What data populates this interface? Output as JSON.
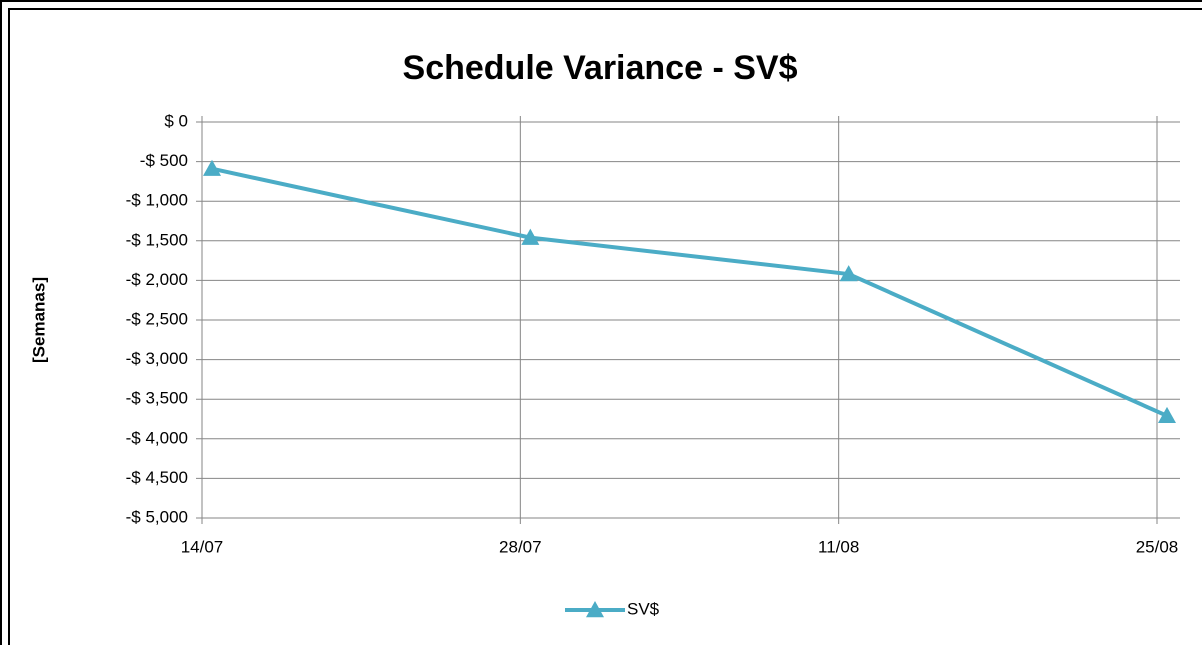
{
  "chart_data": {
    "type": "line",
    "title": "Schedule Variance - SV$",
    "y_label": "[Semanas]",
    "categories": [
      "14/07",
      "28/07",
      "11/08",
      "25/08"
    ],
    "series": [
      {
        "name": "SV$",
        "color": "#4bacc6",
        "values": [
          -590,
          -1460,
          -1920,
          -3710
        ]
      }
    ],
    "ylim": [
      -5000,
      0
    ],
    "yticks": [
      {
        "value": 0,
        "label": "$ 0"
      },
      {
        "value": -500,
        "label": "-$ 500"
      },
      {
        "value": -1000,
        "label": "-$ 1,000"
      },
      {
        "value": -1500,
        "label": "-$ 1,500"
      },
      {
        "value": -2000,
        "label": "-$ 2,000"
      },
      {
        "value": -2500,
        "label": "-$ 2,500"
      },
      {
        "value": -3000,
        "label": "-$ 3,000"
      },
      {
        "value": -3500,
        "label": "-$ 3,500"
      },
      {
        "value": -4000,
        "label": "-$ 4,000"
      },
      {
        "value": -4500,
        "label": "-$ 4,500"
      },
      {
        "value": -5000,
        "label": "-$ 5,000"
      }
    ],
    "grid": true,
    "legend": "bottom"
  }
}
